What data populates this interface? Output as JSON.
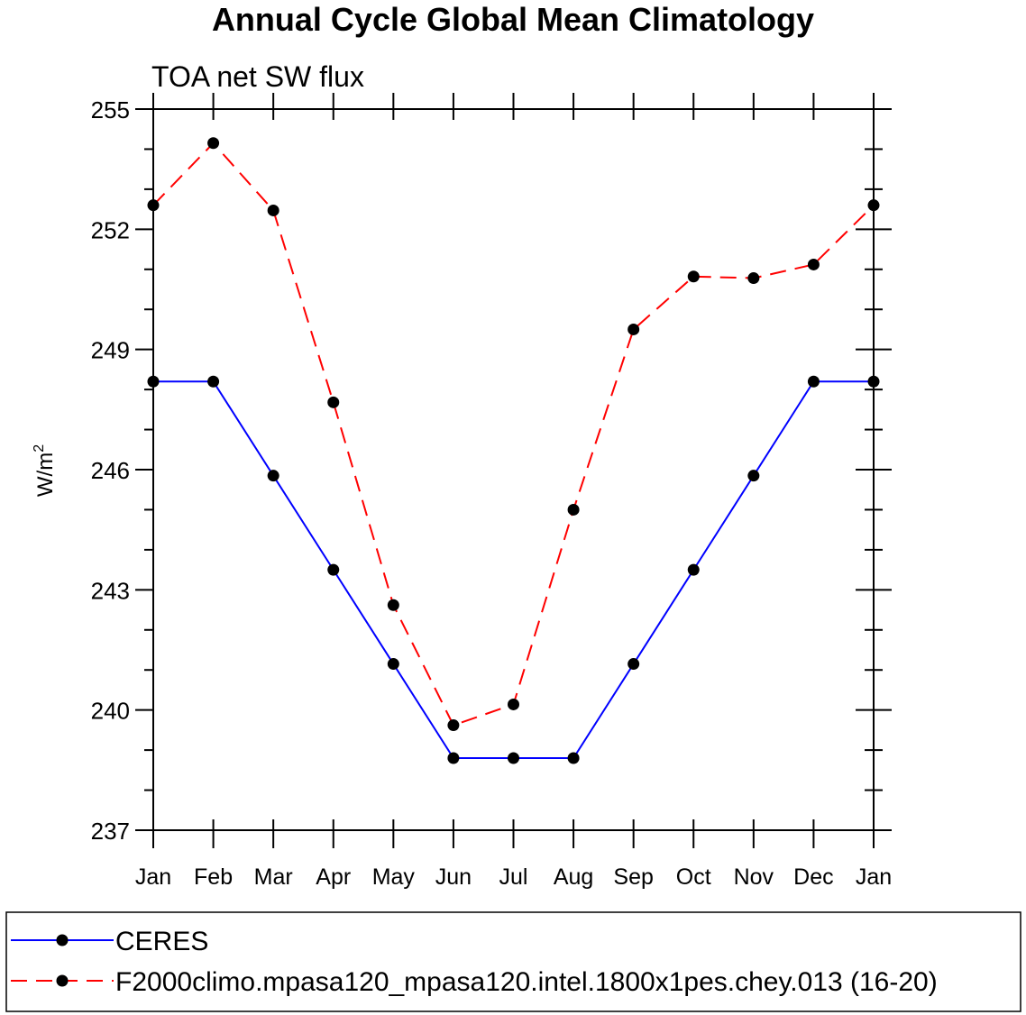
{
  "chart_data": {
    "type": "line",
    "title": "Annual Cycle Global Mean Climatology",
    "subtitle": "TOA net SW flux",
    "ylabel": "W/m",
    "ylabel_superscript": "2",
    "xlabel": "",
    "categories": [
      "Jan",
      "Feb",
      "Mar",
      "Apr",
      "May",
      "Jun",
      "Jul",
      "Aug",
      "Sep",
      "Oct",
      "Nov",
      "Dec",
      "Jan"
    ],
    "ylim": [
      237,
      255
    ],
    "yticks": [
      237,
      240,
      243,
      246,
      249,
      252,
      255
    ],
    "yticks_minor_step": 1,
    "grid": false,
    "legend": "bottom",
    "series": [
      {
        "name": "CERES",
        "color": "#0000ff",
        "line_style": "solid",
        "marker": "filled-circle",
        "values": [
          248.2,
          248.2,
          245.85,
          243.5,
          241.15,
          238.8,
          238.8,
          238.8,
          241.15,
          243.5,
          245.85,
          248.2,
          248.2
        ]
      },
      {
        "name": "F2000climo.mpasa120_mpasa120.intel.1800x1pes.chey.013 (16-20)",
        "color": "#ff0000",
        "line_style": "dashed",
        "marker": "filled-circle",
        "values": [
          252.6,
          254.15,
          252.47,
          247.68,
          242.62,
          239.62,
          240.14,
          245.0,
          249.5,
          250.82,
          250.78,
          251.12,
          252.6
        ]
      }
    ]
  }
}
